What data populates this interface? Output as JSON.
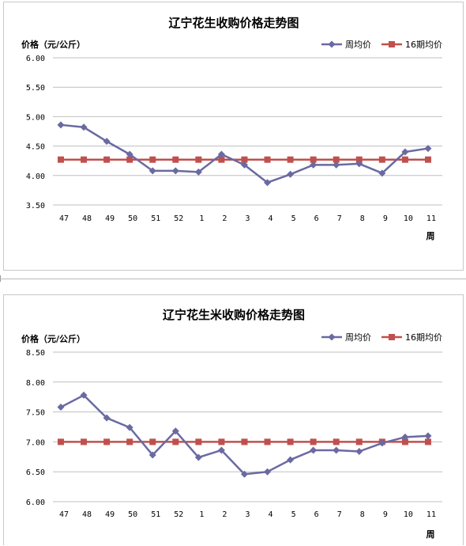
{
  "chart_data": [
    {
      "type": "line",
      "title": "辽宁花生收购价格走势图",
      "ylabel": "价格（元/公斤）",
      "xlabel": "周",
      "categories": [
        "47",
        "48",
        "49",
        "50",
        "51",
        "52",
        "1",
        "2",
        "3",
        "4",
        "5",
        "6",
        "7",
        "8",
        "9",
        "10",
        "11"
      ],
      "ylim": [
        3.5,
        6.0
      ],
      "yticks": [
        "3.50",
        "4.00",
        "4.50",
        "5.00",
        "5.50",
        "6.00"
      ],
      "grid": true,
      "legend": "top-right",
      "series": [
        {
          "name": "周均价",
          "color": "#6a6aa2",
          "marker": "diamond",
          "values": [
            4.86,
            4.82,
            4.58,
            4.36,
            4.08,
            4.08,
            4.06,
            4.36,
            4.18,
            3.88,
            4.02,
            4.18,
            4.18,
            4.2,
            4.04,
            4.4,
            4.46
          ]
        },
        {
          "name": "16期均价",
          "color": "#c0504d",
          "marker": "square",
          "values": [
            4.27,
            4.27,
            4.27,
            4.27,
            4.27,
            4.27,
            4.27,
            4.27,
            4.27,
            4.27,
            4.27,
            4.27,
            4.27,
            4.27,
            4.27,
            4.27,
            4.27
          ]
        }
      ]
    },
    {
      "type": "line",
      "title": "辽宁花生米收购价格走势图",
      "ylabel": "价格（元/公斤）",
      "xlabel": "周",
      "categories": [
        "47",
        "48",
        "49",
        "50",
        "51",
        "52",
        "1",
        "2",
        "3",
        "4",
        "5",
        "6",
        "7",
        "8",
        "9",
        "10",
        "11"
      ],
      "ylim": [
        6.0,
        8.5
      ],
      "yticks": [
        "6.00",
        "6.50",
        "7.00",
        "7.50",
        "8.00",
        "8.50"
      ],
      "grid": true,
      "legend": "top-right",
      "series": [
        {
          "name": "周均价",
          "color": "#6a6aa2",
          "marker": "diamond",
          "values": [
            7.58,
            7.78,
            7.4,
            7.24,
            6.78,
            7.18,
            6.74,
            6.86,
            6.46,
            6.5,
            6.7,
            6.86,
            6.86,
            6.84,
            6.98,
            7.08,
            7.1
          ]
        },
        {
          "name": "16期均价",
          "color": "#c0504d",
          "marker": "square",
          "values": [
            7.0,
            7.0,
            7.0,
            7.0,
            7.0,
            7.0,
            7.0,
            7.0,
            7.0,
            7.0,
            7.0,
            7.0,
            7.0,
            7.0,
            7.0,
            7.0,
            7.0
          ]
        }
      ]
    }
  ]
}
